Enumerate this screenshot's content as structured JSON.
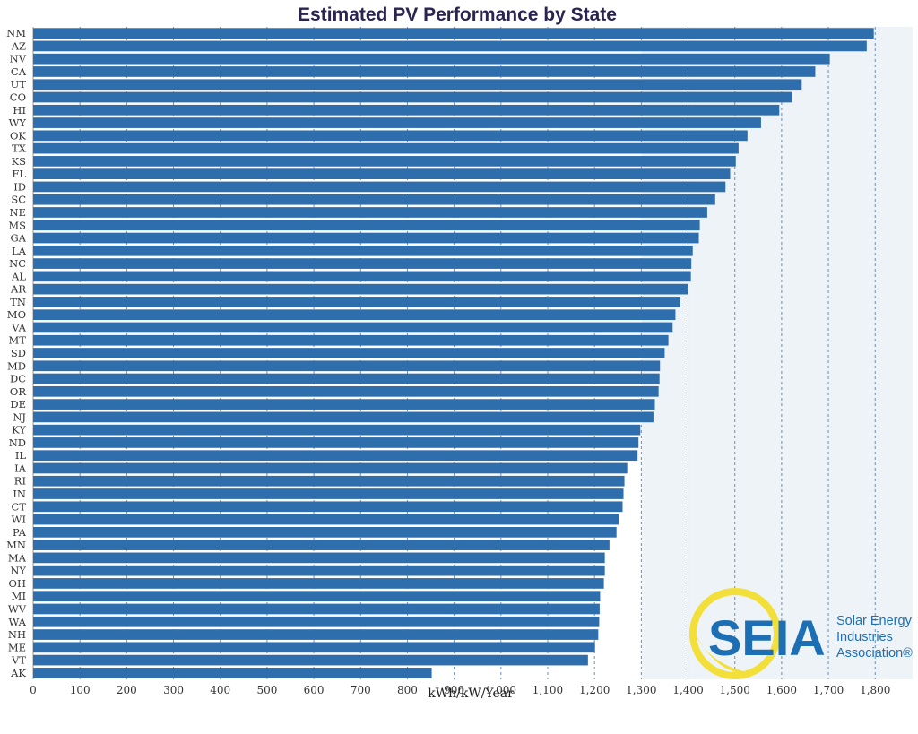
{
  "chart_data": {
    "type": "bar",
    "orientation": "horizontal",
    "title": "Estimated PV Performance by State",
    "xlabel": "kWh/kW/Year",
    "ylabel": "",
    "xlim": [
      0,
      1880
    ],
    "xticks": [
      0,
      100,
      200,
      300,
      400,
      500,
      600,
      700,
      800,
      900,
      1000,
      1100,
      1200,
      1300,
      1400,
      1500,
      1600,
      1700,
      1800
    ],
    "xtick_labels": [
      "0",
      "100",
      "200",
      "300",
      "400",
      "500",
      "600",
      "700",
      "800",
      "900",
      "1,000",
      "1,100",
      "1,200",
      "1,300",
      "1,400",
      "1,500",
      "1,600",
      "1,700",
      "1,800"
    ],
    "grid": "vertical dashed",
    "categories": [
      "NM",
      "AZ",
      "NV",
      "CA",
      "UT",
      "CO",
      "HI",
      "WY",
      "OK",
      "TX",
      "KS",
      "FL",
      "ID",
      "SC",
      "NE",
      "MS",
      "GA",
      "LA",
      "NC",
      "AL",
      "AR",
      "TN",
      "MO",
      "VA",
      "MT",
      "SD",
      "MD",
      "DC",
      "OR",
      "DE",
      "NJ",
      "KY",
      "ND",
      "IL",
      "IA",
      "RI",
      "IN",
      "CT",
      "WI",
      "PA",
      "MN",
      "MA",
      "NY",
      "OH",
      "MI",
      "WV",
      "WA",
      "NH",
      "ME",
      "VT",
      "AK"
    ],
    "values": [
      1797,
      1782,
      1703,
      1672,
      1643,
      1623,
      1595,
      1556,
      1527,
      1508,
      1502,
      1490,
      1480,
      1458,
      1441,
      1425,
      1423,
      1410,
      1407,
      1406,
      1399,
      1383,
      1373,
      1367,
      1358,
      1350,
      1340,
      1339,
      1337,
      1329,
      1326,
      1298,
      1294,
      1292,
      1270,
      1264,
      1262,
      1260,
      1252,
      1247,
      1232,
      1222,
      1222,
      1220,
      1212,
      1211,
      1210,
      1208,
      1201,
      1186,
      852
    ],
    "bar_color": "#2e6ead",
    "shaded_region_start": 1300,
    "shaded_region_color": "#eef3f7"
  },
  "logo": {
    "acronym": "SEIA",
    "line1": "Solar Energy",
    "line2": "Industries",
    "line3": "Association®",
    "sun_color": "#f3df3a",
    "text_color": "#1c6fb5"
  }
}
